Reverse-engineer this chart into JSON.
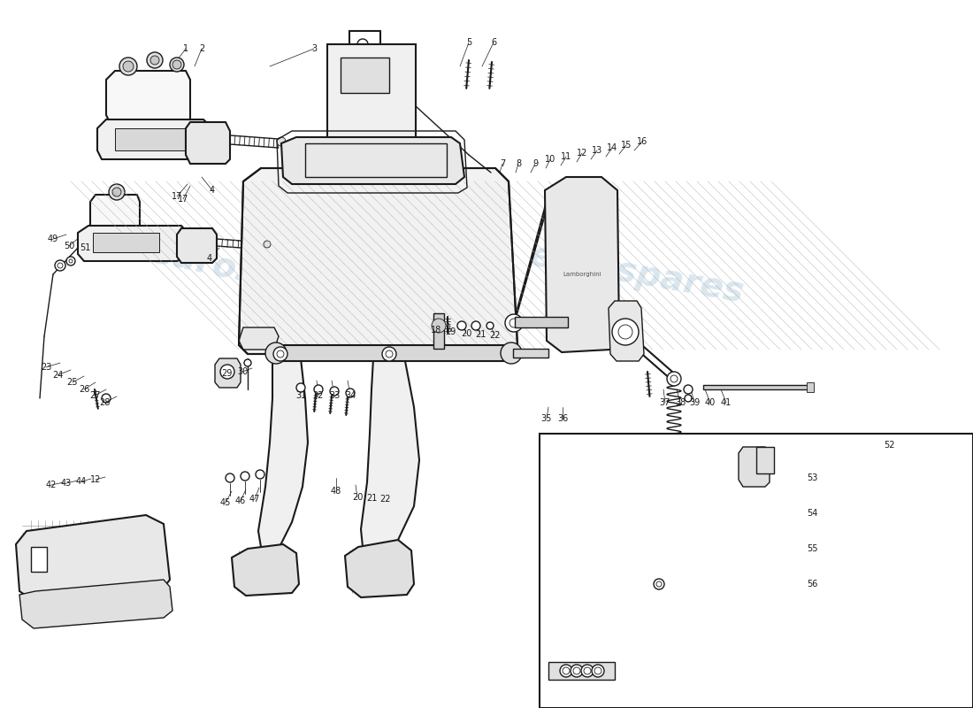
{
  "bg": "#ffffff",
  "lc": "#1a1a1a",
  "wm_color": "#b8cfe0",
  "fig_w": 11.0,
  "fig_h": 8.0,
  "dpi": 100,
  "callouts_upper": [
    [
      1,
      195,
      75,
      210,
      55
    ],
    [
      2,
      220,
      75,
      228,
      55
    ],
    [
      3,
      305,
      75,
      355,
      55
    ],
    [
      4,
      228,
      200,
      240,
      215
    ],
    [
      5,
      520,
      75,
      530,
      48
    ],
    [
      6,
      545,
      75,
      558,
      48
    ],
    [
      7,
      565,
      195,
      568,
      185
    ],
    [
      8,
      583,
      195,
      586,
      185
    ],
    [
      9,
      600,
      195,
      605,
      185
    ],
    [
      10,
      617,
      190,
      622,
      180
    ],
    [
      11,
      634,
      187,
      640,
      177
    ],
    [
      12,
      652,
      183,
      658,
      173
    ],
    [
      13,
      668,
      180,
      675,
      170
    ],
    [
      14,
      685,
      177,
      692,
      167
    ],
    [
      15,
      700,
      174,
      708,
      164
    ],
    [
      16,
      717,
      170,
      726,
      160
    ],
    [
      17,
      215,
      210,
      207,
      225
    ],
    [
      49,
      75,
      265,
      60,
      270
    ],
    [
      50,
      90,
      268,
      78,
      278
    ],
    [
      51,
      108,
      270,
      96,
      280
    ]
  ],
  "callouts_mid": [
    [
      18,
      490,
      360,
      493,
      373
    ],
    [
      19,
      506,
      362,
      510,
      375
    ],
    [
      20,
      522,
      363,
      527,
      377
    ],
    [
      21,
      538,
      364,
      543,
      378
    ],
    [
      22,
      554,
      365,
      559,
      379
    ],
    [
      23,
      68,
      410,
      52,
      415
    ],
    [
      24,
      80,
      418,
      65,
      424
    ],
    [
      25,
      95,
      425,
      82,
      432
    ],
    [
      26,
      108,
      432,
      95,
      440
    ],
    [
      27,
      120,
      440,
      107,
      447
    ],
    [
      28,
      132,
      448,
      118,
      455
    ],
    [
      29,
      270,
      418,
      256,
      422
    ],
    [
      30,
      285,
      416,
      274,
      420
    ],
    [
      31,
      340,
      430,
      340,
      447
    ],
    [
      32,
      358,
      430,
      360,
      447
    ],
    [
      33,
      375,
      430,
      378,
      447
    ],
    [
      34,
      393,
      430,
      396,
      447
    ],
    [
      35,
      620,
      460,
      618,
      473
    ],
    [
      36,
      636,
      460,
      636,
      473
    ]
  ],
  "callouts_right": [
    [
      37,
      750,
      440,
      752,
      455
    ],
    [
      38,
      765,
      440,
      769,
      455
    ],
    [
      39,
      781,
      440,
      785,
      455
    ],
    [
      40,
      797,
      440,
      803,
      455
    ],
    [
      41,
      815,
      440,
      821,
      455
    ]
  ],
  "callouts_lower": [
    [
      42,
      72,
      545,
      58,
      548
    ],
    [
      43,
      88,
      543,
      75,
      546
    ],
    [
      44,
      103,
      541,
      92,
      544
    ],
    [
      12,
      119,
      539,
      108,
      542
    ],
    [
      45,
      262,
      555,
      255,
      568
    ],
    [
      46,
      278,
      553,
      272,
      566
    ],
    [
      47,
      293,
      551,
      288,
      564
    ],
    [
      48,
      380,
      540,
      380,
      555
    ],
    [
      20,
      402,
      548,
      404,
      562
    ],
    [
      21,
      418,
      549,
      420,
      563
    ],
    [
      22,
      433,
      550,
      436,
      564
    ]
  ],
  "callouts_inset": [
    [
      52,
      988,
      503,
      1005,
      503
    ],
    [
      53,
      900,
      530,
      918,
      540
    ],
    [
      54,
      876,
      580,
      918,
      580
    ],
    [
      55,
      856,
      622,
      918,
      620
    ],
    [
      56,
      836,
      665,
      918,
      660
    ]
  ]
}
